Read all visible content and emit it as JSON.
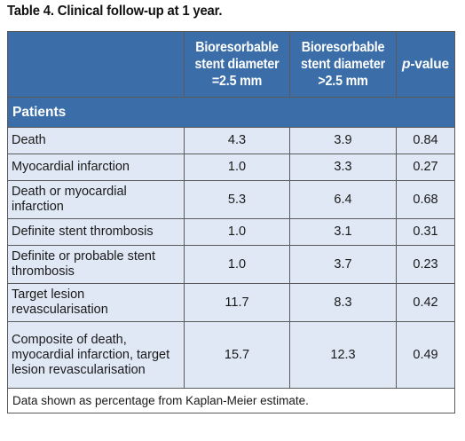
{
  "title": "Table 4. Clinical follow-up at 1 year.",
  "header": {
    "col1_line1": "Bioresorbable",
    "col1_line2": "stent diameter",
    "col1_line3": "=2.5 mm",
    "col2_line1": "Bioresorbable",
    "col2_line2": "stent diameter",
    "col2_line3": ">2.5 mm",
    "col3_italic": "p",
    "col3_rest": "-value"
  },
  "section_label": "Patients",
  "rows": [
    {
      "label": "Death",
      "a": "4.3",
      "b": "3.9",
      "p": "0.84"
    },
    {
      "label": "Myocardial infarction",
      "a": "1.0",
      "b": "3.3",
      "p": "0.27"
    },
    {
      "label": "Death or myocardial infarction",
      "a": "5.3",
      "b": "6.4",
      "p": "0.68"
    },
    {
      "label": "Definite stent thrombosis",
      "a": "1.0",
      "b": "3.1",
      "p": "0.31"
    },
    {
      "label": "Definite or probable stent thrombosis",
      "a": "1.0",
      "b": "3.7",
      "p": "0.23"
    },
    {
      "label": "Target lesion revascularisation",
      "a": "11.7",
      "b": "8.3",
      "p": "0.42"
    },
    {
      "label": "Composite of death, myocardial infarction, target lesion revascularisation",
      "a": "15.7",
      "b": "12.3",
      "p": "0.49"
    }
  ],
  "footnote": "Data shown as percentage from Kaplan-Meier estimate.",
  "colors": {
    "header_bg": "#3b6ea8",
    "row_bg": "#dfe8f4",
    "border": "#5a5a5a"
  }
}
